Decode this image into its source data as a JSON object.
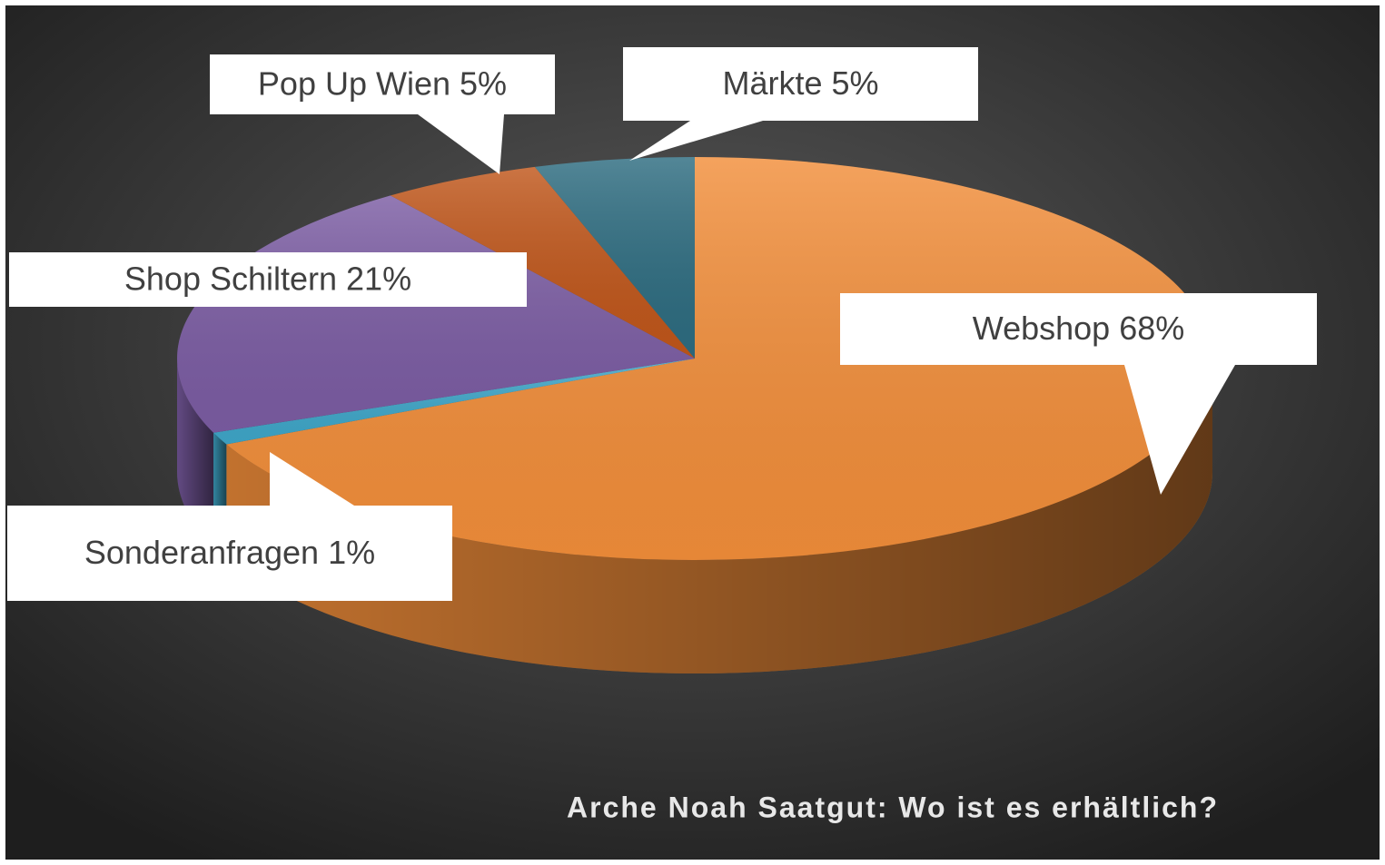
{
  "chart_data": {
    "type": "pie3d",
    "title": "Arche Noah Saatgut: Wo ist es erhältlich?",
    "values": [
      68,
      1,
      21,
      5,
      5
    ],
    "value_labels": [
      "Webshop 68%",
      "Sonderanfragen 1%",
      "Shop Schiltern 21%",
      "Pop Up Wien 5%",
      "Märkte 5%"
    ],
    "colors": [
      "#f28e3a",
      "#3ea6c8",
      "#7b5ca3",
      "#c0561a",
      "#2d6c80"
    ]
  }
}
